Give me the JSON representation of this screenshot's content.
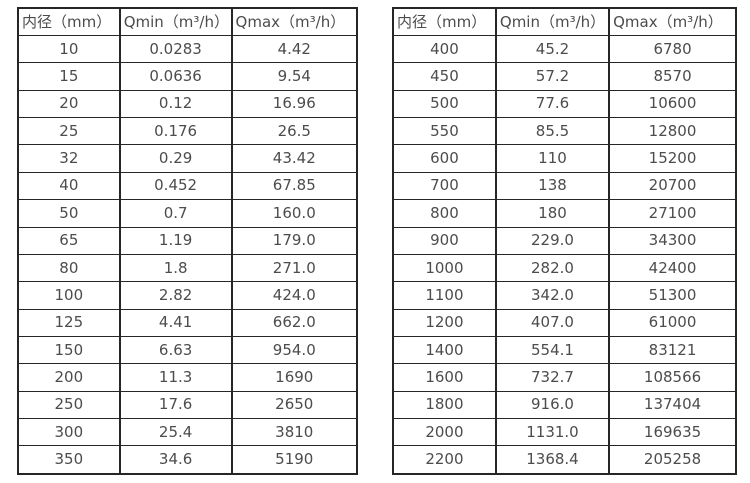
{
  "colors": {
    "background": "#ffffff",
    "border": "#262626",
    "text": "#4c4c4c"
  },
  "tables": [
    {
      "name": "flow-spec-table-small-diameters",
      "headers": [
        "内径（mm）",
        "Qmin（m³/h）",
        "Qmax（m³/h）"
      ],
      "rows": [
        [
          "10",
          "0.0283",
          "4.42"
        ],
        [
          "15",
          "0.0636",
          "9.54"
        ],
        [
          "20",
          "0.12",
          "16.96"
        ],
        [
          "25",
          "0.176",
          "26.5"
        ],
        [
          "32",
          "0.29",
          "43.42"
        ],
        [
          "40",
          "0.452",
          "67.85"
        ],
        [
          "50",
          "0.7",
          "160.0"
        ],
        [
          "65",
          "1.19",
          "179.0"
        ],
        [
          "80",
          "1.8",
          "271.0"
        ],
        [
          "100",
          "2.82",
          "424.0"
        ],
        [
          "125",
          "4.41",
          "662.0"
        ],
        [
          "150",
          "6.63",
          "954.0"
        ],
        [
          "200",
          "11.3",
          "1690"
        ],
        [
          "250",
          "17.6",
          "2650"
        ],
        [
          "300",
          "25.4",
          "3810"
        ],
        [
          "350",
          "34.6",
          "5190"
        ]
      ]
    },
    {
      "name": "flow-spec-table-large-diameters",
      "headers": [
        "内径（mm）",
        "Qmin（m³/h）",
        "Qmax（m³/h）"
      ],
      "rows": [
        [
          "400",
          "45.2",
          "6780"
        ],
        [
          "450",
          "57.2",
          "8570"
        ],
        [
          "500",
          "77.6",
          "10600"
        ],
        [
          "550",
          "85.5",
          "12800"
        ],
        [
          "600",
          "110",
          "15200"
        ],
        [
          "700",
          "138",
          "20700"
        ],
        [
          "800",
          "180",
          "27100"
        ],
        [
          "900",
          "229.0",
          "34300"
        ],
        [
          "1000",
          "282.0",
          "42400"
        ],
        [
          "1100",
          "342.0",
          "51300"
        ],
        [
          "1200",
          "407.0",
          "61000"
        ],
        [
          "1400",
          "554.1",
          "83121"
        ],
        [
          "1600",
          "732.7",
          "108566"
        ],
        [
          "1800",
          "916.0",
          "137404"
        ],
        [
          "2000",
          "1131.0",
          "169635"
        ],
        [
          "2200",
          "1368.4",
          "205258"
        ]
      ]
    }
  ]
}
